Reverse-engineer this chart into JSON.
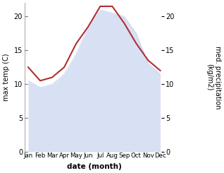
{
  "months": [
    "Jan",
    "Feb",
    "Mar",
    "Apr",
    "May",
    "Jun",
    "Jul",
    "Aug",
    "Sep",
    "Oct",
    "Nov",
    "Dec"
  ],
  "max_temp": [
    12.5,
    10.5,
    11.0,
    12.5,
    16.0,
    18.5,
    21.5,
    21.5,
    19.0,
    16.0,
    13.5,
    12.0
  ],
  "med_precip": [
    10.5,
    9.5,
    10.0,
    11.5,
    14.5,
    18.5,
    21.0,
    20.5,
    20.0,
    17.5,
    13.0,
    11.5
  ],
  "temp_color": "#b03030",
  "fill_color": "#c8d4f0",
  "fill_edge_color": "#a0b0e0",
  "ylabel_left": "max temp (C)",
  "ylabel_right": "med. precipitation\n(kg/m2)",
  "xlabel": "date (month)",
  "ylim": [
    0,
    22
  ],
  "yticks": [
    0,
    5,
    10,
    15,
    20
  ],
  "background_color": "#ffffff",
  "fill_alpha": 0.7
}
